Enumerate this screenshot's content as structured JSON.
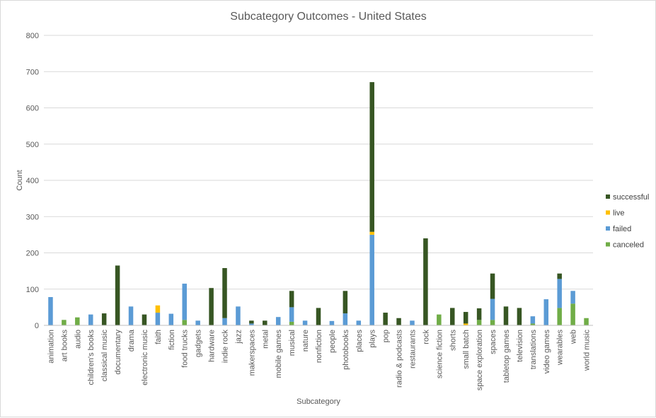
{
  "chart_data": {
    "type": "bar",
    "stacked": true,
    "title": "Subcategory Outcomes - United States",
    "xlabel": "Subcategory",
    "ylabel": "Count",
    "ylim": [
      0,
      800
    ],
    "yticks": [
      0,
      100,
      200,
      300,
      400,
      500,
      600,
      700,
      800
    ],
    "grid": true,
    "legend_position": "right",
    "categories": [
      "animation",
      "art books",
      "audio",
      "children's books",
      "classical music",
      "documentary",
      "drama",
      "electronic music",
      "faith",
      "fiction",
      "food trucks",
      "gadgets",
      "hardware",
      "indie rock",
      "jazz",
      "makerspaces",
      "metal",
      "mobile games",
      "musical",
      "nature",
      "nonfiction",
      "people",
      "photobooks",
      "places",
      "plays",
      "pop",
      "radio & podcasts",
      "restaurants",
      "rock",
      "science fiction",
      "shorts",
      "small batch",
      "space exploration",
      "spaces",
      "tabletop games",
      "television",
      "translations",
      "video games",
      "wearables",
      "web",
      "world music"
    ],
    "series": [
      {
        "name": "canceled",
        "color": "#70ad47",
        "values": [
          0,
          15,
          22,
          0,
          0,
          0,
          0,
          0,
          0,
          0,
          15,
          0,
          0,
          0,
          0,
          0,
          0,
          0,
          10,
          0,
          0,
          0,
          0,
          0,
          0,
          0,
          0,
          0,
          0,
          30,
          0,
          0,
          15,
          15,
          0,
          0,
          5,
          0,
          48,
          60,
          20
        ]
      },
      {
        "name": "failed",
        "color": "#5b9bd5",
        "values": [
          78,
          0,
          0,
          30,
          0,
          0,
          52,
          0,
          35,
          32,
          100,
          13,
          0,
          20,
          52,
          5,
          0,
          23,
          40,
          13,
          0,
          12,
          33,
          13,
          250,
          0,
          0,
          13,
          0,
          0,
          0,
          0,
          0,
          58,
          0,
          0,
          20,
          72,
          80,
          35,
          0
        ]
      },
      {
        "name": "live",
        "color": "#ffc000",
        "values": [
          0,
          0,
          0,
          0,
          0,
          0,
          0,
          0,
          20,
          0,
          0,
          0,
          0,
          0,
          0,
          0,
          0,
          0,
          0,
          0,
          0,
          0,
          0,
          0,
          8,
          0,
          0,
          0,
          0,
          0,
          0,
          5,
          0,
          0,
          0,
          0,
          0,
          0,
          0,
          0,
          0
        ]
      },
      {
        "name": "successful",
        "color": "#375623",
        "values": [
          0,
          0,
          0,
          0,
          33,
          165,
          0,
          30,
          0,
          0,
          0,
          0,
          103,
          138,
          0,
          8,
          13,
          0,
          45,
          0,
          48,
          0,
          62,
          0,
          413,
          35,
          20,
          0,
          240,
          0,
          48,
          32,
          32,
          70,
          52,
          48,
          0,
          0,
          15,
          0,
          0
        ]
      }
    ]
  }
}
